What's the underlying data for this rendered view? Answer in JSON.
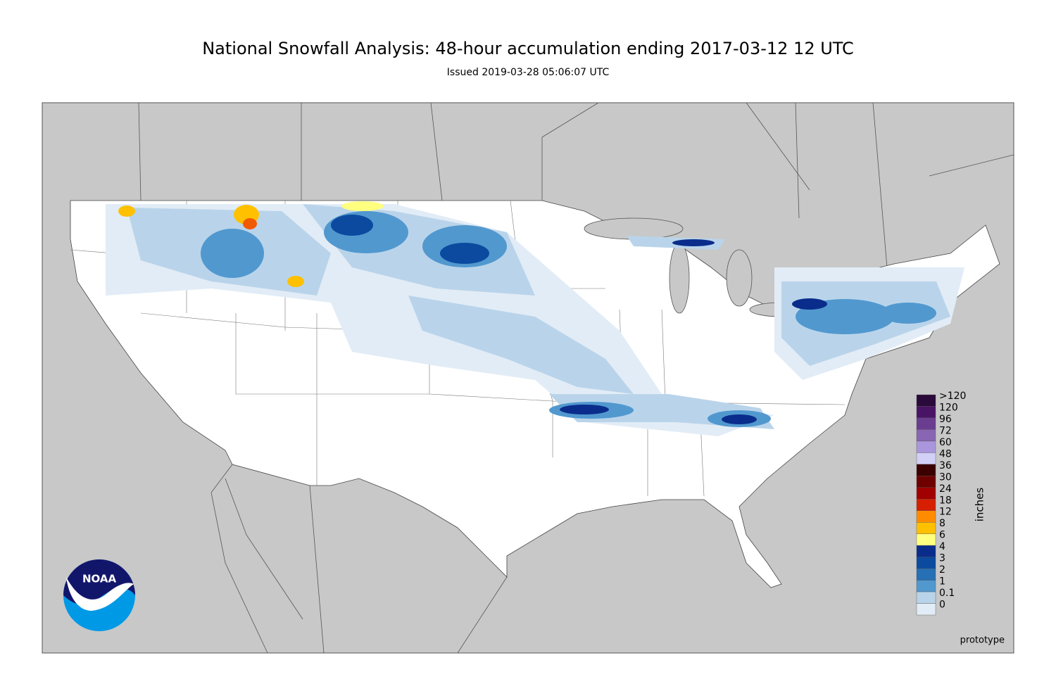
{
  "header": {
    "title": "National Snowfall Analysis: 48-hour accumulation ending 2017-03-12 12 UTC",
    "subtitle": "Issued 2019-03-28 05:06:07 UTC"
  },
  "legend": {
    "unit": "inches",
    "entries": [
      {
        "label": ">120",
        "color": "#2a0a3a"
      },
      {
        "label": "120",
        "color": "#4a1466"
      },
      {
        "label": "96",
        "color": "#6b3d90"
      },
      {
        "label": "72",
        "color": "#8966b3"
      },
      {
        "label": "60",
        "color": "#aa96dc"
      },
      {
        "label": "48",
        "color": "#d2d0f7"
      },
      {
        "label": "36",
        "color": "#3b0000"
      },
      {
        "label": "30",
        "color": "#6e0000"
      },
      {
        "label": "24",
        "color": "#a10000"
      },
      {
        "label": "18",
        "color": "#d61f00"
      },
      {
        "label": "12",
        "color": "#ff8c00"
      },
      {
        "label": "8",
        "color": "#ffc000"
      },
      {
        "label": "6",
        "color": "#ffff80"
      },
      {
        "label": "4",
        "color": "#0a2d8c"
      },
      {
        "label": "3",
        "color": "#0b4a9e"
      },
      {
        "label": "2",
        "color": "#2670b5"
      },
      {
        "label": "1",
        "color": "#5198cf"
      },
      {
        "label": "0.1",
        "color": "#b9d4ea"
      },
      {
        "label": "0",
        "color": "#e2ecf6"
      }
    ]
  },
  "footer": {
    "note": "prototype"
  },
  "logo": {
    "text": "NOAA"
  }
}
